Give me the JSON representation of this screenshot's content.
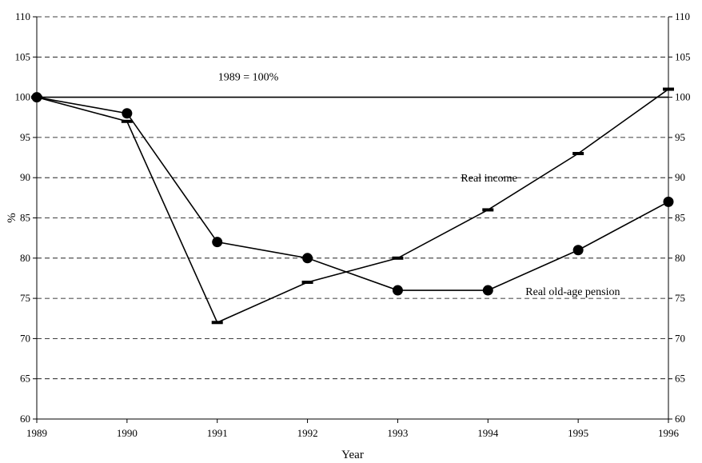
{
  "chart_data": {
    "type": "line",
    "title": "",
    "xlabel": "Year",
    "ylabel": "%",
    "categories": [
      "1989",
      "1990",
      "1991",
      "1992",
      "1993",
      "1994",
      "1995",
      "1996"
    ],
    "y_ticks": [
      "60",
      "65",
      "70",
      "75",
      "80",
      "85",
      "90",
      "95",
      "100",
      "105",
      "110"
    ],
    "ylim": [
      60,
      110
    ],
    "grid": "dashed horizontal",
    "series": [
      {
        "name": "Real income",
        "marker": "dash",
        "values": [
          100,
          97,
          72,
          77,
          80,
          86,
          93,
          101
        ]
      },
      {
        "name": "Real old-age pension",
        "marker": "circle",
        "values": [
          100,
          98,
          82,
          80,
          76,
          76,
          81,
          87
        ]
      }
    ],
    "reference_line": {
      "value": 100,
      "label": "1989 = 100%"
    },
    "colors": {
      "line": "#000000",
      "background": "#ffffff"
    }
  }
}
